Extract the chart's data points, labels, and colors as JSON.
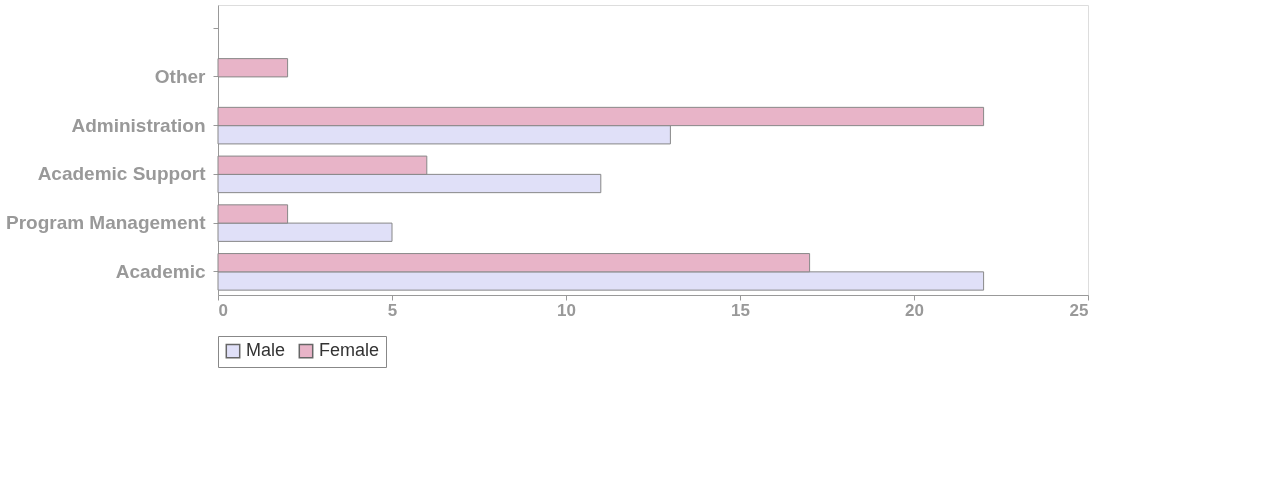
{
  "chart_data": {
    "type": "bar",
    "orientation": "horizontal",
    "categories": [
      null,
      "Other",
      "Administration",
      "Academic Support",
      "Program Management",
      "Academic"
    ],
    "series": [
      {
        "name": "Male",
        "color": "#e0e0f8",
        "values": [
          null,
          null,
          13,
          11,
          5,
          22
        ]
      },
      {
        "name": "Female",
        "color": "#e8b4c8",
        "values": [
          null,
          2,
          22,
          6,
          2,
          17
        ]
      }
    ],
    "xlim": [
      0,
      25
    ],
    "xticks": [
      0,
      5,
      10,
      15,
      20,
      25
    ],
    "grid": false,
    "legend": "bottom"
  }
}
